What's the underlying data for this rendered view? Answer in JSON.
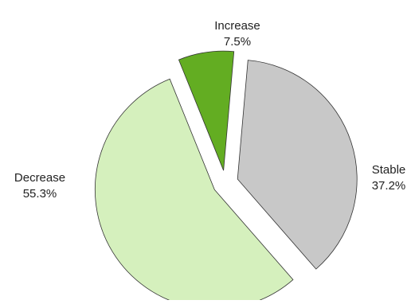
{
  "chart_data": {
    "type": "pie",
    "title": "",
    "slices": [
      {
        "label": "Increase",
        "value": 7.5,
        "value_label": "7.5%",
        "color": "#63ad22"
      },
      {
        "label": "Stable",
        "value": 37.2,
        "value_label": "37.2%",
        "color": "#c8c8c8"
      },
      {
        "label": "Decrease",
        "value": 55.3,
        "value_label": "55.3%",
        "color": "#d5f0bd"
      }
    ],
    "exploded": true,
    "legend": false
  }
}
